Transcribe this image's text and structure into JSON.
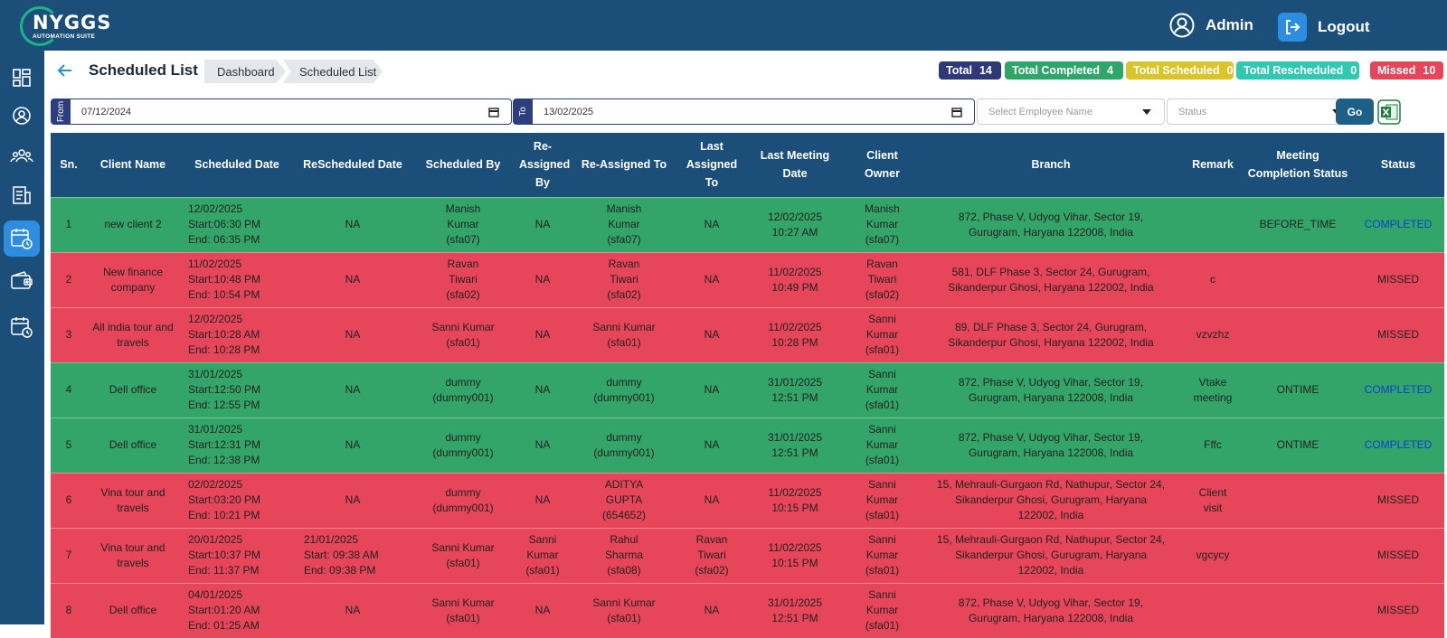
{
  "app": {
    "logo_title": "NYGGS",
    "logo_sub": "AUTOMATION SUITE"
  },
  "header": {
    "user_label": "Admin",
    "logout_label": "Logout"
  },
  "sidebar": {
    "items": [
      {
        "icon": "dashboard-icon"
      },
      {
        "icon": "user-profile-icon"
      },
      {
        "icon": "team-icon"
      },
      {
        "icon": "document-list-icon"
      },
      {
        "icon": "calendar-clock-icon",
        "active": true
      },
      {
        "icon": "wallet-icon"
      },
      {
        "icon": "schedule-icon"
      }
    ]
  },
  "page": {
    "title": "Scheduled List"
  },
  "breadcrumb": {
    "items": [
      "Dashboard",
      "Scheduled List"
    ]
  },
  "badges": {
    "total": {
      "label": "Total",
      "count": "14",
      "color": "#2e3a78"
    },
    "completed": {
      "label": "Total Completed",
      "count": "4",
      "color": "#2ea66a"
    },
    "scheduled": {
      "label": "Total Scheduled",
      "count": "0",
      "color": "#d9c52a"
    },
    "rescheduled": {
      "label": "Total Rescheduled",
      "count": "0",
      "color": "#2fc8b0"
    },
    "missed": {
      "label": "Missed",
      "count": "10",
      "color": "#e6455a"
    }
  },
  "filters": {
    "from_label": "From",
    "from_value": "07/12/2024",
    "to_label": "To",
    "to_value": "13/02/2025",
    "employee_placeholder": "Select Employee Name",
    "status_placeholder": "Status",
    "go_label": "Go"
  },
  "table": {
    "columns": [
      "Sn.",
      "Client Name",
      "Scheduled Date",
      "ReScheduled Date",
      "Scheduled By",
      "Re-Assigned By",
      "Re-Assigned To",
      "Last Assigned To",
      "Last Meeting Date",
      "Client Owner",
      "Branch",
      "Remark",
      "Meeting Completion Status",
      "Status"
    ],
    "rows": [
      {
        "sn": "1",
        "client": "new client 2",
        "sched": [
          "12/02/2025",
          "Start:06:30 PM",
          "End: 06:35 PM"
        ],
        "resched": [
          "NA"
        ],
        "by": [
          "Manish",
          "Kumar",
          "(sfa07)"
        ],
        "reby": [
          "NA"
        ],
        "reto": [
          "Manish",
          "Kumar",
          "(sfa07)"
        ],
        "last": [
          "NA"
        ],
        "meet": [
          "12/02/2025",
          "10:27 AM"
        ],
        "owner": [
          "Manish",
          "Kumar",
          "(sfa07)"
        ],
        "branch": [
          "872, Phase V, Udyog Vihar, Sector 19,",
          "Gurugram, Haryana 122008, India"
        ],
        "remark": [
          ""
        ],
        "mcs": "BEFORE_TIME",
        "status": "COMPLETED"
      },
      {
        "sn": "2",
        "client": "New finance company",
        "sched": [
          "11/02/2025",
          "Start:10:48 PM",
          "End: 10:54 PM"
        ],
        "resched": [
          "NA"
        ],
        "by": [
          "Ravan",
          "Tiwari",
          "(sfa02)"
        ],
        "reby": [
          "NA"
        ],
        "reto": [
          "Ravan",
          "Tiwari",
          "(sfa02)"
        ],
        "last": [
          "NA"
        ],
        "meet": [
          "11/02/2025",
          "10:49 PM"
        ],
        "owner": [
          "Ravan",
          "Tiwari",
          "(sfa02)"
        ],
        "branch": [
          "581, DLF Phase 3, Sector 24, Gurugram,",
          "Sikanderpur Ghosi, Haryana 122002, India"
        ],
        "remark": [
          "c"
        ],
        "mcs": "",
        "status": "MISSED"
      },
      {
        "sn": "3",
        "client": "All india tour and travels",
        "sched": [
          "12/02/2025",
          "Start:10:28 AM",
          "End: 10:28 PM"
        ],
        "resched": [
          "NA"
        ],
        "by": [
          "Sanni Kumar",
          "(sfa01)"
        ],
        "reby": [
          "NA"
        ],
        "reto": [
          "Sanni Kumar",
          "(sfa01)"
        ],
        "last": [
          "NA"
        ],
        "meet": [
          "11/02/2025",
          "10:28 PM"
        ],
        "owner": [
          "Sanni",
          "Kumar",
          "(sfa01)"
        ],
        "branch": [
          "89, DLF Phase 3, Sector 24, Gurugram,",
          "Sikanderpur Ghosi, Haryana 122002, India"
        ],
        "remark": [
          "vzvzhz"
        ],
        "mcs": "",
        "status": "MISSED"
      },
      {
        "sn": "4",
        "client": "Dell office",
        "sched": [
          "31/01/2025",
          "Start:12:50 PM",
          "End: 12:55 PM"
        ],
        "resched": [
          "NA"
        ],
        "by": [
          "dummy",
          "(dummy001)"
        ],
        "reby": [
          "NA"
        ],
        "reto": [
          "dummy",
          "(dummy001)"
        ],
        "last": [
          "NA"
        ],
        "meet": [
          "31/01/2025",
          "12:51 PM"
        ],
        "owner": [
          "Sanni",
          "Kumar",
          "(sfa01)"
        ],
        "branch": [
          "872, Phase V, Udyog Vihar, Sector 19,",
          "Gurugram, Haryana 122008, India"
        ],
        "remark": [
          "Vtake",
          "meeting"
        ],
        "mcs": "ONTIME",
        "status": "COMPLETED"
      },
      {
        "sn": "5",
        "client": "Dell office",
        "sched": [
          "31/01/2025",
          "Start:12:31 PM",
          "End: 12:38 PM"
        ],
        "resched": [
          "NA"
        ],
        "by": [
          "dummy",
          "(dummy001)"
        ],
        "reby": [
          "NA"
        ],
        "reto": [
          "dummy",
          "(dummy001)"
        ],
        "last": [
          "NA"
        ],
        "meet": [
          "31/01/2025",
          "12:51 PM"
        ],
        "owner": [
          "Sanni",
          "Kumar",
          "(sfa01)"
        ],
        "branch": [
          "872, Phase V, Udyog Vihar, Sector 19,",
          "Gurugram, Haryana 122008, India"
        ],
        "remark": [
          "Fffc"
        ],
        "mcs": "ONTIME",
        "status": "COMPLETED"
      },
      {
        "sn": "6",
        "client": "Vina tour and travels",
        "sched": [
          "02/02/2025",
          "Start:03:20 PM",
          "End: 10:21 PM"
        ],
        "resched": [
          "NA"
        ],
        "by": [
          "dummy",
          "(dummy001)"
        ],
        "reby": [
          "NA"
        ],
        "reto": [
          "ADITYA",
          "GUPTA",
          "(654652)"
        ],
        "last": [
          "NA"
        ],
        "meet": [
          "11/02/2025",
          "10:15 PM"
        ],
        "owner": [
          "Sanni",
          "Kumar",
          "(sfa01)"
        ],
        "branch": [
          "15, Mehrauli-Gurgaon Rd, Nathupur, Sector 24,",
          "Sikanderpur Ghosi, Gurugram, Haryana",
          "122002, India"
        ],
        "remark": [
          "Client",
          "visit"
        ],
        "mcs": "",
        "status": "MISSED"
      },
      {
        "sn": "7",
        "client": "Vina tour and travels",
        "sched": [
          "20/01/2025",
          "Start:10:37 PM",
          "End: 11:37 PM"
        ],
        "resched": [
          "21/01/2025",
          "Start: 09:38 AM",
          "End: 09:38 PM"
        ],
        "by": [
          "Sanni Kumar",
          "(sfa01)"
        ],
        "reby": [
          "Sanni",
          "Kumar",
          "(sfa01)"
        ],
        "reto": [
          "Rahul",
          "Sharma",
          "(sfa08)"
        ],
        "last": [
          "Ravan",
          "Tiwari",
          "(sfa02)"
        ],
        "meet": [
          "11/02/2025",
          "10:15 PM"
        ],
        "owner": [
          "Sanni",
          "Kumar",
          "(sfa01)"
        ],
        "branch": [
          "15, Mehrauli-Gurgaon Rd, Nathupur, Sector 24,",
          "Sikanderpur Ghosi, Gurugram, Haryana",
          "122002, India"
        ],
        "remark": [
          "vgcycy"
        ],
        "mcs": "",
        "status": "MISSED"
      },
      {
        "sn": "8",
        "client": "Dell office",
        "sched": [
          "04/01/2025",
          "Start:01:20 AM",
          "End: 01:25 AM"
        ],
        "resched": [
          "NA"
        ],
        "by": [
          "Sanni Kumar",
          "(sfa01)"
        ],
        "reby": [
          "NA"
        ],
        "reto": [
          "Sanni Kumar",
          "(sfa01)"
        ],
        "last": [
          "NA"
        ],
        "meet": [
          "31/01/2025",
          "12:51 PM"
        ],
        "owner": [
          "Sanni",
          "Kumar",
          "(sfa01)"
        ],
        "branch": [
          "872, Phase V, Udyog Vihar, Sector 19,",
          "Gurugram, Haryana 122008, India"
        ],
        "remark": [
          ""
        ],
        "mcs": "",
        "status": "MISSED"
      }
    ]
  }
}
